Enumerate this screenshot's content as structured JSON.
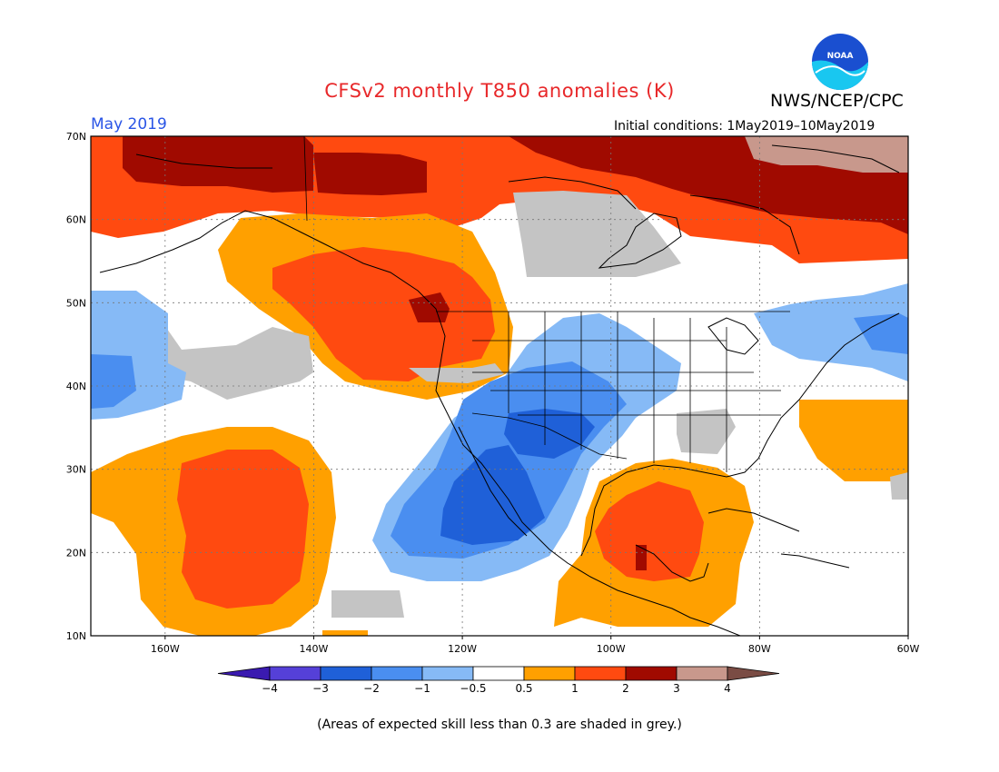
{
  "header": {
    "title": "CFSv2 monthly T850 anomalies (K)",
    "agency": "NWS/NCEP/CPC",
    "logo_text": "NOAA",
    "month": "May 2019",
    "initial_conditions": "Initial conditions: 1May2019–10May2019"
  },
  "map": {
    "lat_labels": [
      "70N",
      "60N",
      "50N",
      "40N",
      "30N",
      "20N",
      "10N"
    ],
    "lon_labels": [
      "160W",
      "140W",
      "120W",
      "100W",
      "80W",
      "60W"
    ],
    "lat_range": [
      10,
      70
    ],
    "lon_range": [
      -170,
      -60
    ],
    "region": "North America / Eastern Pacific",
    "grid": "dotted"
  },
  "colorbar": {
    "tick_labels": [
      "−4",
      "−3",
      "−2",
      "−1",
      "−0.5",
      "0.5",
      "1",
      "2",
      "3",
      "4"
    ],
    "colors": [
      "#3a1ab0",
      "#5540d8",
      "#1f60d8",
      "#4a8ef0",
      "#86baf6",
      "#ffffff",
      "#ffa000",
      "#ff4a10",
      "#a00a00",
      "#c8988c",
      "#7a4c44"
    ],
    "skill_shading_color": "#c4c4c4"
  },
  "footnote": "(Areas of expected skill less than 0.3 are shaded in grey.)"
}
